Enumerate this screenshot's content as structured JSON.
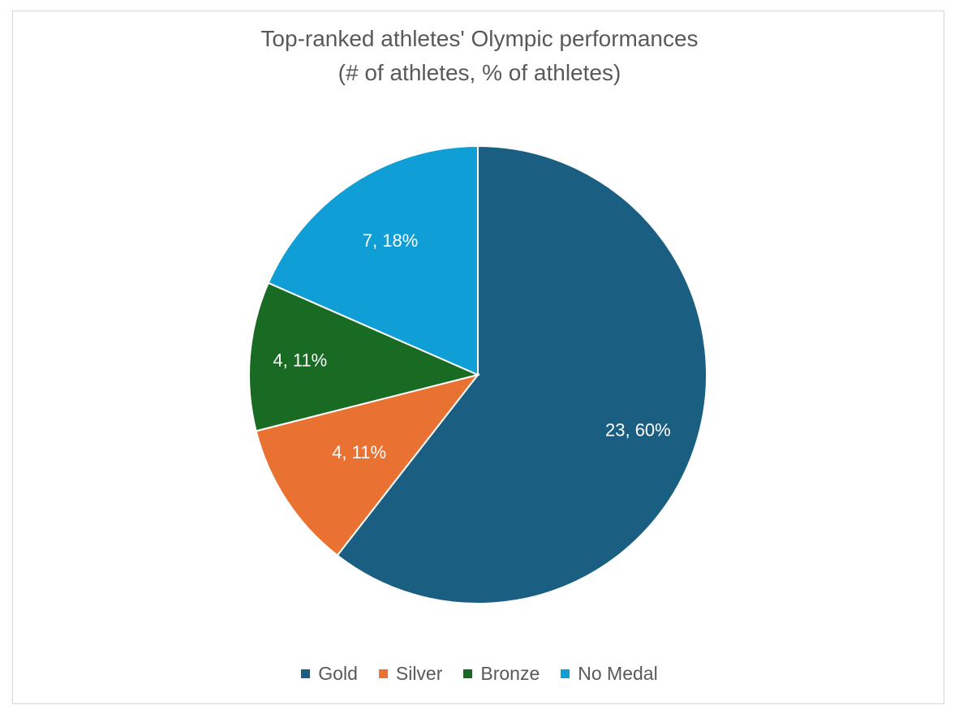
{
  "chart_data": {
    "type": "pie",
    "title": "Top-ranked athletes' Olympic performances",
    "subtitle": "(# of athletes, % of athletes)",
    "slices": [
      {
        "label": "Gold",
        "value": 23,
        "percent": 60,
        "data_label": "23, 60%",
        "color": "#1a5f82"
      },
      {
        "label": "Silver",
        "value": 4,
        "percent": 11,
        "data_label": "4, 11%",
        "color": "#e97132"
      },
      {
        "label": "Bronze",
        "value": 4,
        "percent": 11,
        "data_label": "4, 11%",
        "color": "#196b24"
      },
      {
        "label": "No Medal",
        "value": 7,
        "percent": 18,
        "data_label": "7, 18%",
        "color": "#0f9ed5"
      }
    ],
    "legend_position": "bottom",
    "start_angle": "12 o'clock",
    "direction": "clockwise"
  }
}
